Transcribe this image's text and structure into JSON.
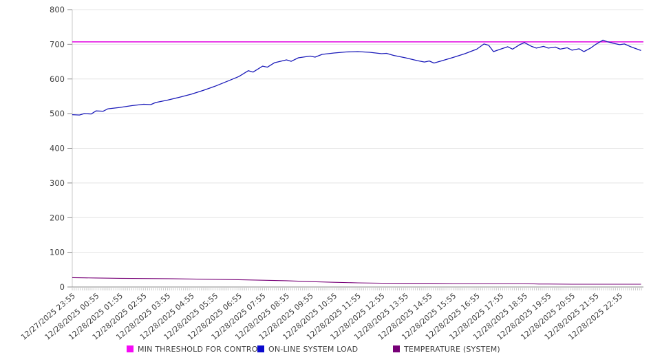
{
  "chart_data": {
    "type": "line",
    "title": "",
    "grid": "horizontal",
    "legend_position": "bottom",
    "colors": {
      "grid": "#e4e4e4",
      "axis_line": "#8a8a8a",
      "left_axis_line": "#c9c9c9",
      "minor_tick": "#b5b5b5",
      "tick_label": "#3d3d3d"
    },
    "y_axis": {
      "min": 0,
      "max": 800,
      "tick_step": 100,
      "ticks": [
        0,
        100,
        200,
        300,
        400,
        500,
        600,
        700,
        800
      ]
    },
    "x_axis": {
      "range_hours": [
        0,
        24
      ],
      "minor_tick_interval_minutes": 5,
      "label_hours": [
        0,
        1,
        2,
        3,
        4,
        5,
        6,
        7,
        8,
        9,
        10,
        11,
        12,
        13,
        14,
        15,
        16,
        17,
        18,
        19,
        20,
        21,
        22,
        23
      ],
      "labels": [
        "12/27/2025 23:55",
        "12/28/2025 00:55",
        "12/28/2025 01:55",
        "12/28/2025 02:55",
        "12/28/2025 03:55",
        "12/28/2025 04:55",
        "12/28/2025 05:55",
        "12/28/2025 06:55",
        "12/28/2025 07:55",
        "12/28/2025 08:55",
        "12/28/2025 09:55",
        "12/28/2025 10:55",
        "12/28/2025 11:55",
        "12/28/2025 12:55",
        "12/28/2025 13:55",
        "12/28/2025 14:55",
        "12/28/2025 15:55",
        "12/28/2025 16:55",
        "12/28/2025 17:55",
        "12/28/2025 18:55",
        "12/28/2025 19:55",
        "12/28/2025 20:55",
        "12/28/2025 21:55",
        "12/28/2025 22:55"
      ]
    },
    "series": [
      {
        "name": "MIN THRESHOLD FOR CONTROL",
        "color": "#e316e3",
        "type": "hline",
        "value": 707,
        "line_width": 1.6
      },
      {
        "name": "ON-LINE SYSTEM LOAD",
        "color": "#1a1ab9",
        "type": "line",
        "line_width": 1.3,
        "points": [
          [
            0,
            497
          ],
          [
            0.3,
            496
          ],
          [
            0.5,
            500
          ],
          [
            0.8,
            499
          ],
          [
            1,
            508
          ],
          [
            1.3,
            507
          ],
          [
            1.5,
            514
          ],
          [
            2,
            518
          ],
          [
            2.5,
            523
          ],
          [
            3,
            527
          ],
          [
            3.3,
            526
          ],
          [
            3.5,
            532
          ],
          [
            4,
            539
          ],
          [
            4.5,
            547
          ],
          [
            5,
            556
          ],
          [
            5.5,
            567
          ],
          [
            6,
            579
          ],
          [
            6.5,
            593
          ],
          [
            7,
            607
          ],
          [
            7.4,
            624
          ],
          [
            7.6,
            620
          ],
          [
            8,
            637
          ],
          [
            8.2,
            634
          ],
          [
            8.5,
            647
          ],
          [
            9,
            655
          ],
          [
            9.2,
            651
          ],
          [
            9.5,
            661
          ],
          [
            10,
            666
          ],
          [
            10.2,
            663
          ],
          [
            10.5,
            671
          ],
          [
            11,
            675
          ],
          [
            11.5,
            678
          ],
          [
            12,
            679
          ],
          [
            12.5,
            677
          ],
          [
            13,
            673
          ],
          [
            13.2,
            674
          ],
          [
            13.5,
            668
          ],
          [
            14,
            661
          ],
          [
            14.5,
            653
          ],
          [
            14.8,
            649
          ],
          [
            15,
            652
          ],
          [
            15.2,
            646
          ],
          [
            15.5,
            652
          ],
          [
            16,
            662
          ],
          [
            16.5,
            673
          ],
          [
            17,
            686
          ],
          [
            17.3,
            701
          ],
          [
            17.5,
            697
          ],
          [
            17.7,
            679
          ],
          [
            18,
            686
          ],
          [
            18.3,
            693
          ],
          [
            18.5,
            686
          ],
          [
            18.8,
            699
          ],
          [
            19,
            705
          ],
          [
            19.3,
            694
          ],
          [
            19.5,
            689
          ],
          [
            19.8,
            694
          ],
          [
            20,
            689
          ],
          [
            20.3,
            692
          ],
          [
            20.5,
            686
          ],
          [
            20.8,
            690
          ],
          [
            21,
            683
          ],
          [
            21.3,
            687
          ],
          [
            21.5,
            679
          ],
          [
            21.8,
            690
          ],
          [
            22,
            700
          ],
          [
            22.3,
            712
          ],
          [
            22.5,
            707
          ],
          [
            22.8,
            702
          ],
          [
            23,
            699
          ],
          [
            23.2,
            701
          ],
          [
            23.5,
            692
          ],
          [
            23.9,
            682
          ]
        ]
      },
      {
        "name": "TEMPERATURE (SYSTEM)",
        "color": "#770077",
        "type": "line",
        "line_width": 1.1,
        "points": [
          [
            0,
            27
          ],
          [
            0.5,
            26.5
          ],
          [
            1,
            26
          ],
          [
            2,
            25
          ],
          [
            3,
            24.5
          ],
          [
            4,
            24
          ],
          [
            5,
            23
          ],
          [
            6,
            22
          ],
          [
            7,
            21
          ],
          [
            8,
            19.5
          ],
          [
            9,
            18
          ],
          [
            10,
            15.5
          ],
          [
            11,
            13.5
          ],
          [
            12,
            12
          ],
          [
            13,
            11
          ],
          [
            14,
            10.5
          ],
          [
            15,
            10.5
          ],
          [
            16,
            10
          ],
          [
            17,
            10
          ],
          [
            18,
            10
          ],
          [
            19,
            10
          ],
          [
            19.6,
            8.5
          ],
          [
            20,
            8.5
          ],
          [
            21,
            8
          ],
          [
            22,
            8
          ],
          [
            23,
            8
          ],
          [
            23.9,
            8
          ]
        ]
      }
    ]
  },
  "legend": {
    "items": [
      {
        "label": "MIN THRESHOLD FOR CONTROL",
        "color": "#f50af5",
        "x": 184
      },
      {
        "label": "ON-LINE SYSTEM LOAD",
        "color": "#0a0acd",
        "x": 374
      },
      {
        "label": "TEMPERATURE (SYSTEM)",
        "color": "#770077",
        "x": 571
      }
    ]
  }
}
